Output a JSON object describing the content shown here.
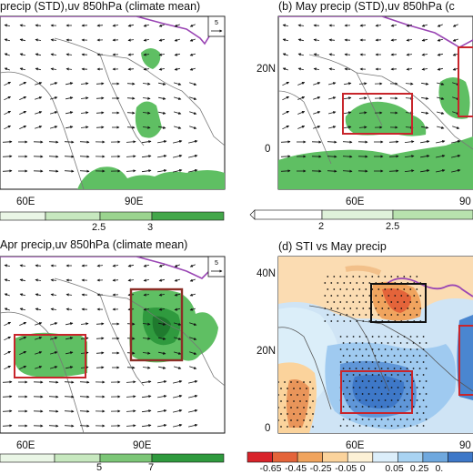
{
  "chart_data": [
    {
      "type": "heatmap",
      "title": "precip (STD),uv 850hPa (climate mean)",
      "x_ticks": [
        "60E",
        "90E"
      ],
      "colorbar_ticks": [
        "2.5",
        "3"
      ],
      "precip_field": "green shading",
      "wind_vectors": true
    },
    {
      "type": "heatmap",
      "title": "(b) May precip (STD),uv 850hPa (c",
      "x_ticks": [
        "60E",
        "90"
      ],
      "y_ticks": [
        "20N",
        "0"
      ],
      "colorbar_ticks": [
        "2",
        "2.5"
      ],
      "boxes": [
        "red"
      ]
    },
    {
      "type": "heatmap",
      "title": "Apr precip,uv 850hPa (climate mean)",
      "x_ticks": [
        "60E",
        "90E"
      ],
      "colorbar_ticks": [
        "5",
        "7"
      ],
      "boxes": [
        "red",
        "brown"
      ]
    },
    {
      "type": "heatmap",
      "title": "(d) STI vs May precip",
      "x_ticks": [
        "60E",
        "90"
      ],
      "y_ticks": [
        "40N",
        "20N",
        "0"
      ],
      "colorbar_ticks": [
        "-0.65",
        "-0.45",
        "-0.25",
        "-0.05",
        "0",
        "0.05",
        "0.25"
      ],
      "colorbar_extra": "0.",
      "colorbar_colors": [
        "#d8232a",
        "#e4643a",
        "#f0a45e",
        "#fbd39c",
        "#fdf1d6",
        "#dceefa",
        "#a9d3f2",
        "#6fa8de",
        "#3e78c8"
      ],
      "boxes": [
        "black",
        "red",
        "red"
      ]
    }
  ],
  "reference_vector_label": "5"
}
